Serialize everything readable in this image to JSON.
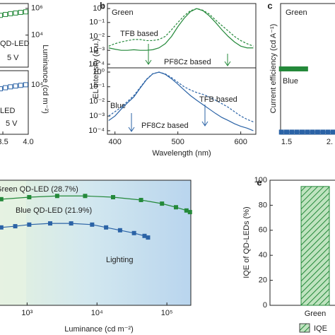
{
  "chart_data": [
    {
      "type": "scatter",
      "y_label": "Luminance (cd m⁻²)",
      "log_y": true,
      "xlim": [
        3.43,
        4.0
      ],
      "ylim": [
        40,
        2300000
      ],
      "yticks": [
        {
          "value": 1000000,
          "label": "10⁶"
        },
        {
          "value": 10000,
          "label": "10⁴"
        }
      ],
      "annotations": [
        "QD-LED",
        "5 V"
      ],
      "x": [
        3.45,
        3.55,
        3.65,
        3.75,
        3.85,
        3.95
      ],
      "series": [
        {
          "color": "#24893a",
          "values": [
            300000,
            350000,
            400000,
            450000,
            500000,
            550000
          ]
        }
      ]
    },
    {
      "type": "scatter",
      "log_y": true,
      "xlim": [
        3.43,
        4.0
      ],
      "ylim": [
        2,
        112000
      ],
      "yticks": [
        {
          "value": 10000,
          "label": "10⁴"
        }
      ],
      "xticks": [
        {
          "value": 3.5,
          "label": "3.5"
        },
        {
          "value": 4,
          "label": "4.0"
        }
      ],
      "annotations": [
        "LED",
        "5 V"
      ],
      "x": [
        3.45,
        3.55,
        3.65,
        3.75,
        3.85,
        3.95
      ],
      "series": [
        {
          "color": "#2b63a6",
          "values": [
            5000,
            6000,
            7000,
            8000,
            9000,
            10000
          ]
        }
      ]
    },
    {
      "type": "line",
      "label": "b",
      "sublabel": "Green",
      "y_label": "EL intensity (a.u.)",
      "log_y": true,
      "xlim": [
        388,
        624
      ],
      "ylim": [
        5.5e-05,
        2.3
      ],
      "yticks": [
        {
          "value": 1,
          "label": "10⁰"
        },
        {
          "value": 0.1,
          "label": "10⁻¹"
        },
        {
          "value": 0.01,
          "label": "10⁻²"
        },
        {
          "value": 0.001,
          "label": "10⁻³"
        },
        {
          "value": 0.0001,
          "label": "10⁻⁴"
        }
      ],
      "x": [
        390,
        400,
        410,
        420,
        430,
        440,
        450,
        460,
        470,
        480,
        490,
        500,
        510,
        520,
        530,
        540,
        550,
        560,
        570,
        580,
        590,
        600,
        610,
        620
      ],
      "series": [
        {
          "name": "PF8Cz based",
          "color": "#24893a",
          "dashed": false,
          "values": [
            0.0015,
            0.0012,
            0.001,
            0.001,
            0.0011,
            0.001,
            0.001,
            0.0011,
            0.0015,
            0.003,
            0.01,
            0.05,
            0.2,
            0.6,
            1,
            0.7,
            0.3,
            0.1,
            0.03,
            0.01,
            0.004,
            0.002,
            0.0015,
            0.0015
          ]
        },
        {
          "name": "TFB based",
          "color": "#24893a",
          "dashed": true,
          "values": [
            0.002,
            0.003,
            0.004,
            0.005,
            0.006,
            0.006,
            0.005,
            0.005,
            0.006,
            0.01,
            0.03,
            0.1,
            0.3,
            0.7,
            1,
            0.75,
            0.4,
            0.15,
            0.06,
            0.025,
            0.01,
            0.005,
            0.003,
            0.002
          ]
        }
      ]
    },
    {
      "type": "line",
      "sublabel": "Blue",
      "x_label": "Wavelength (nm)",
      "log_y": true,
      "xlim": [
        388,
        624
      ],
      "ylim": [
        5.7e-05,
        1.95
      ],
      "yticks": [
        {
          "value": 1,
          "label": "10⁰"
        },
        {
          "value": 0.1,
          "label": "10⁻¹"
        },
        {
          "value": 0.01,
          "label": "10⁻²"
        },
        {
          "value": 0.001,
          "label": "10⁻³"
        },
        {
          "value": 0.0001,
          "label": "10⁻⁴"
        }
      ],
      "xticks": [
        400,
        500,
        600
      ],
      "x": [
        390,
        400,
        410,
        420,
        430,
        440,
        450,
        460,
        470,
        480,
        490,
        500,
        510,
        520,
        530,
        540,
        550,
        560,
        570,
        580,
        590,
        600,
        610,
        620
      ],
      "series": [
        {
          "name": "PF8Cz based",
          "color": "#2b63a6",
          "dashed": false,
          "values": [
            0.0005,
            0.001,
            0.003,
            0.008,
            0.02,
            0.08,
            0.3,
            0.75,
            1,
            0.7,
            0.35,
            0.15,
            0.06,
            0.025,
            0.012,
            0.006,
            0.003,
            0.0015,
            0.0008,
            0.0005,
            0.0003,
            0.0002,
            0.00015,
            0.0001
          ]
        },
        {
          "name": "TFB based",
          "color": "#2b63a6",
          "dashed": true,
          "values": [
            0.001,
            0.002,
            0.004,
            0.01,
            0.025,
            0.09,
            0.32,
            0.78,
            1,
            0.75,
            0.42,
            0.2,
            0.1,
            0.06,
            0.04,
            0.03,
            0.02,
            0.012,
            0.007,
            0.004,
            0.002,
            0.001,
            0.0006,
            0.0004
          ]
        }
      ]
    },
    {
      "type": "scatter",
      "label": "c",
      "y_label": "Current efficiency (cd A⁻¹)",
      "xlim": [
        1.43,
        2.07
      ],
      "ylim": [
        0,
        30
      ],
      "xticks": [
        1.5,
        {
          "value": 2,
          "label": "2."
        }
      ],
      "series": [
        {
          "name": "Green",
          "color": "#24893a",
          "x": [
            1.44,
            1.48,
            1.52,
            1.56,
            1.6,
            1.64,
            1.68,
            1.72
          ],
          "values": [
            15,
            15,
            15,
            15,
            15,
            15,
            15,
            15
          ]
        },
        {
          "name": "Blue",
          "color": "#2b63a6",
          "x": [
            1.44,
            1.5,
            1.56,
            1.62,
            1.68,
            1.74,
            1.8,
            1.86,
            1.92,
            1.98,
            2.04
          ],
          "values": [
            0.5,
            0.5,
            0.5,
            0.5,
            0.5,
            0.5,
            0.5,
            0.5,
            0.5,
            0.5,
            0.5
          ]
        }
      ]
    },
    {
      "type": "line",
      "x_label": "Luminance (cd m⁻²)",
      "log_x": true,
      "xlim": [
        400,
        220000
      ],
      "ylim": [
        0,
        31
      ],
      "xticks": [
        {
          "value": 1000,
          "label": "10³"
        },
        {
          "value": 10000,
          "label": "10⁴"
        },
        {
          "value": 100000,
          "label": "10⁵"
        }
      ],
      "annotations": [
        "Lighting"
      ],
      "series": [
        {
          "name": "Green QD-LED (28.7%)",
          "color": "#24893a",
          "x": [
            427,
            1072,
            2692,
            6761,
            16980,
            42660,
            85110,
            134900,
            190500,
            213800
          ],
          "values": [
            26.3,
            26.8,
            27.1,
            27.1,
            26.8,
            26.1,
            25.2,
            24.3,
            23.5,
            23.1
          ]
        },
        {
          "name": "Blue QD-LED (21.9%)",
          "color": "#2b63a6",
          "x": [
            427,
            676,
            1072,
            2138,
            4266,
            8511,
            13490,
            21380,
            33880,
            47860,
            53700
          ],
          "values": [
            19.3,
            19.6,
            20,
            20.3,
            20.3,
            20,
            19.3,
            18.6,
            17.9,
            17.2,
            16.8
          ]
        }
      ]
    },
    {
      "type": "bar",
      "label": "e",
      "y_label": "IQE of QD-LEDs (%)",
      "categories": [
        "Green"
      ],
      "ylim": [
        0,
        100
      ],
      "yticks": [
        0,
        20,
        40,
        60,
        80,
        100
      ],
      "series": [
        {
          "name": "IQE",
          "color": "#24893a",
          "values": [
            95
          ]
        }
      ]
    }
  ]
}
